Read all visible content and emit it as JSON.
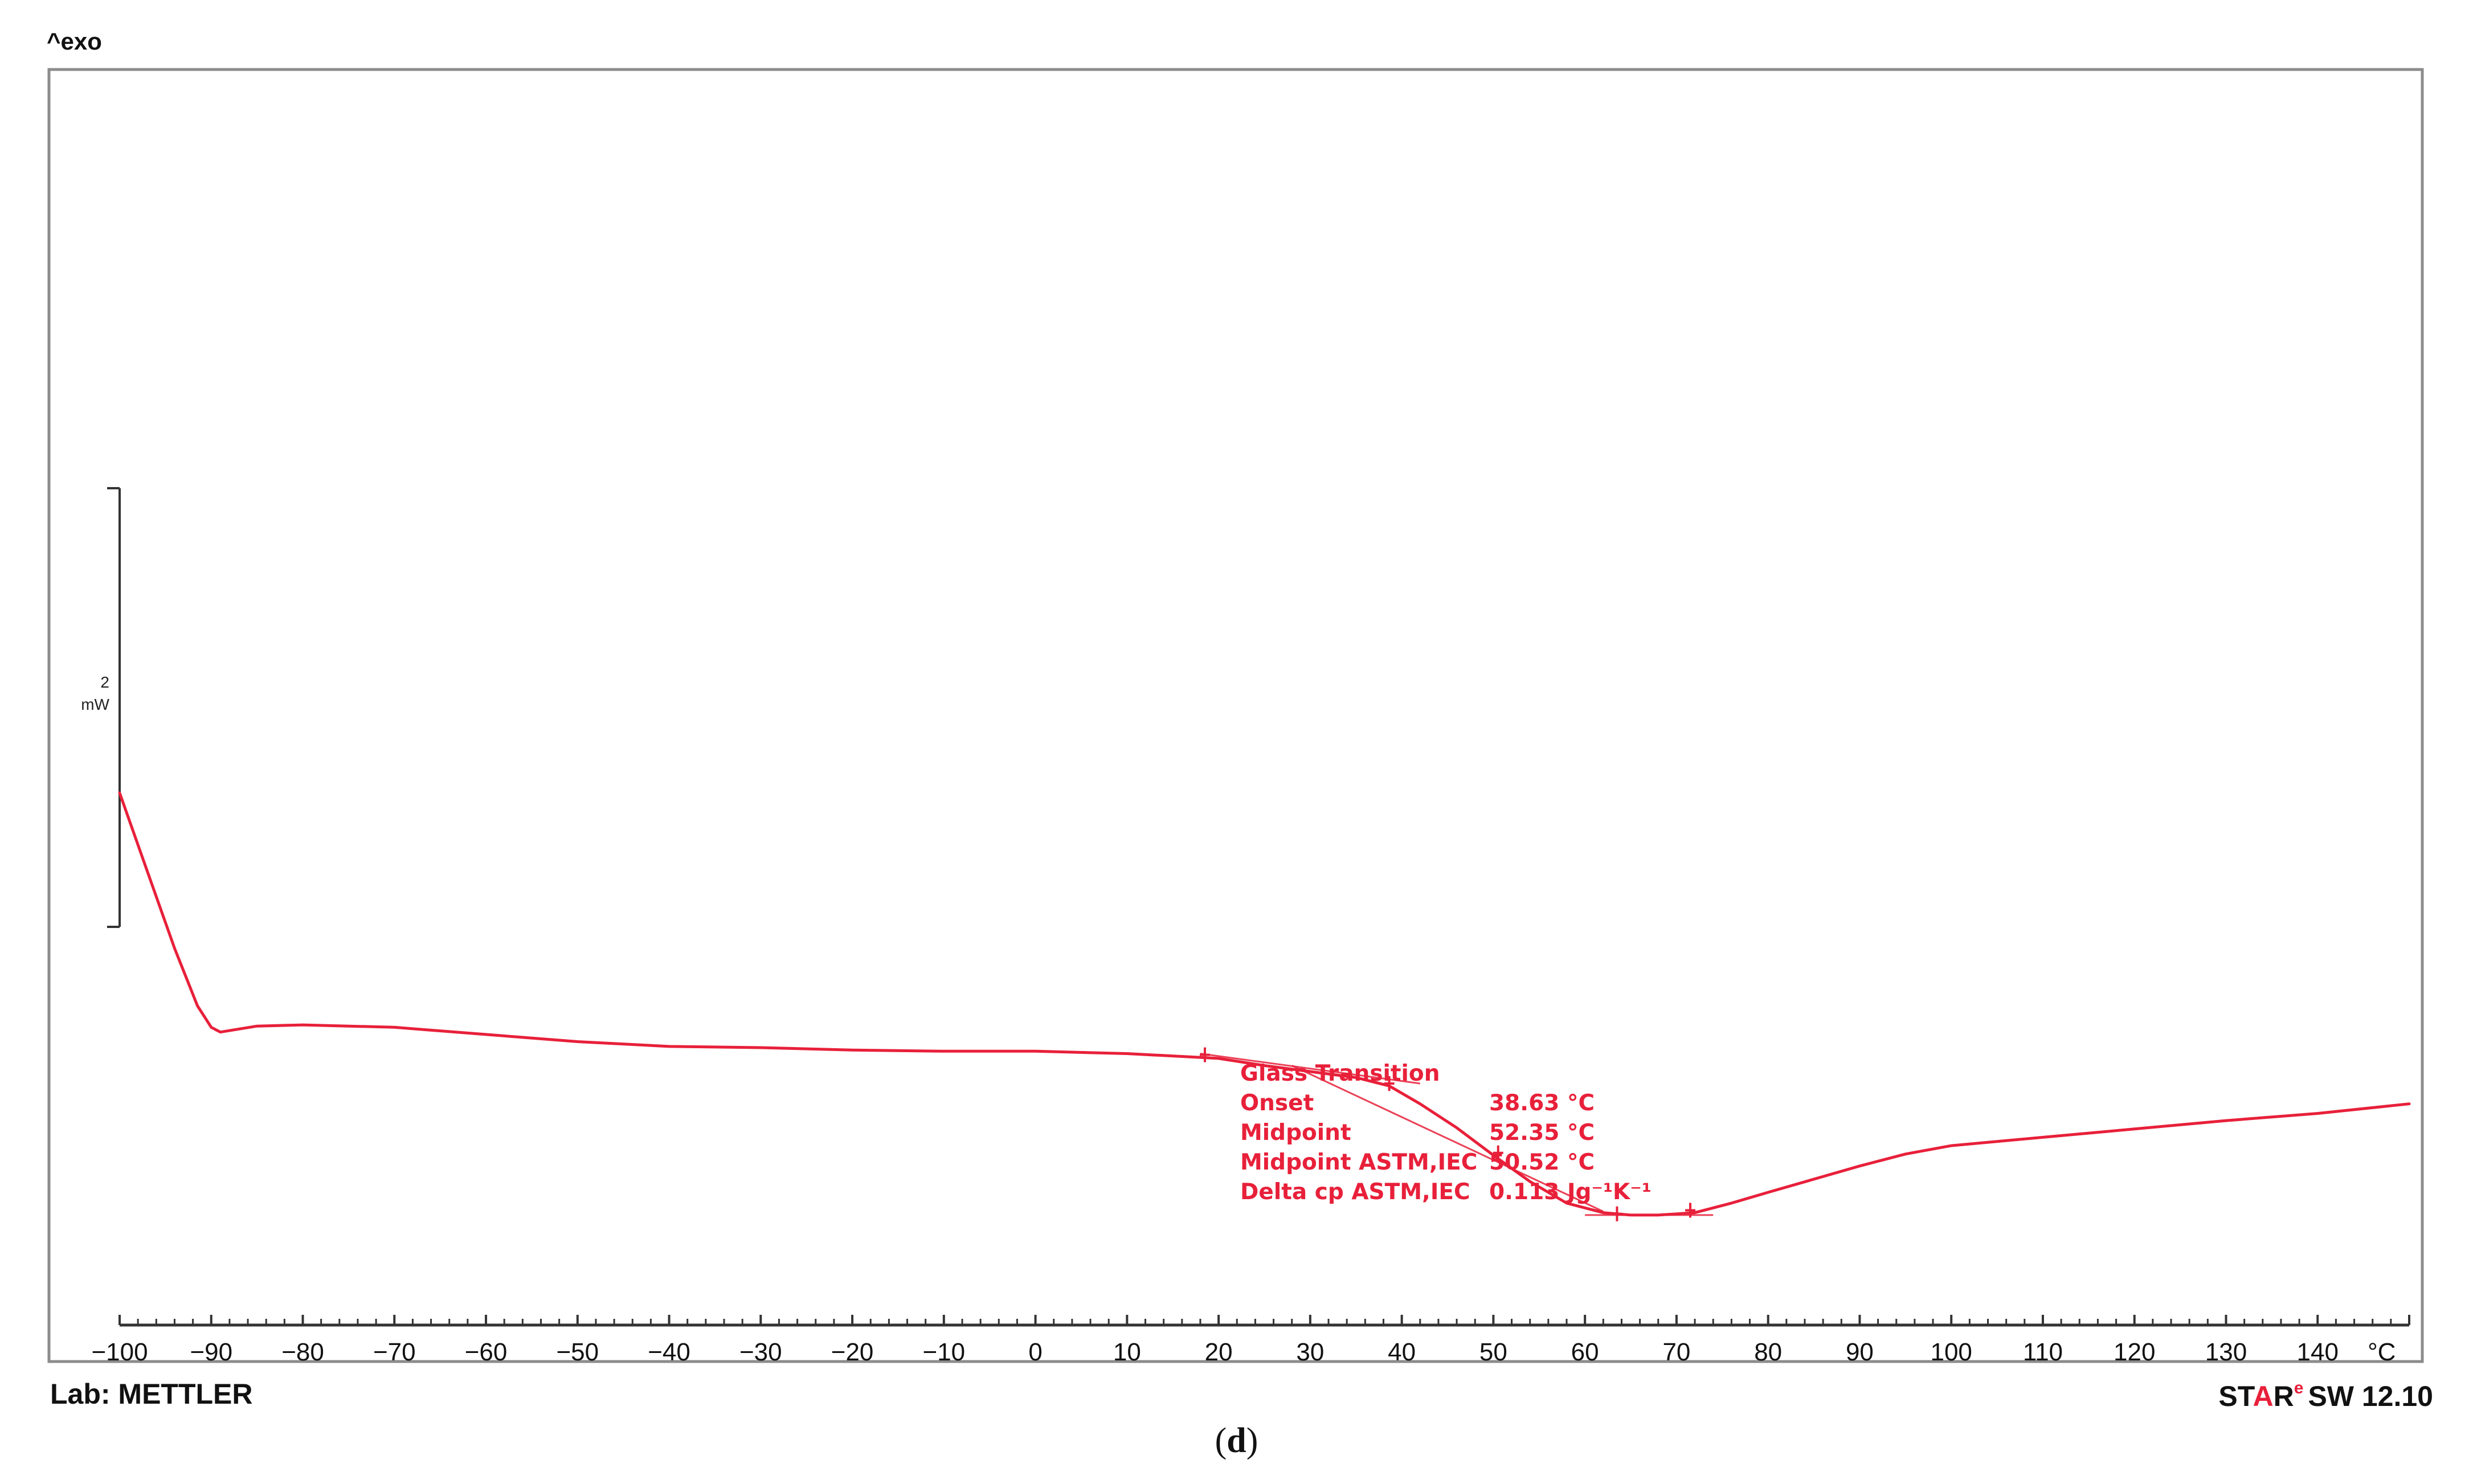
{
  "header": {
    "exo_label": "^exo"
  },
  "footer": {
    "lab": "Lab: METTLER",
    "software_brand": [
      "S",
      "T",
      "A",
      "R"
    ],
    "software_superscript": "e",
    "software_version": "SW 12.10",
    "panel_label_open": "(",
    "panel_label_letter": "d",
    "panel_label_close": ")"
  },
  "scale_bar": {
    "value": "2",
    "unit": "mW",
    "value_mw": 2
  },
  "annotation": {
    "title": "Glass Transition",
    "rows": [
      {
        "key": "Onset",
        "value": "38.63 °C"
      },
      {
        "key": "Midpoint",
        "value": "52.35 °C"
      },
      {
        "key": "Midpoint ASTM,IEC",
        "value": "50.52 °C"
      },
      {
        "key": "Delta cp ASTM,IEC",
        "value": "0.113 Jg⁻¹K⁻¹"
      }
    ]
  },
  "colors": {
    "curve": "#e8203a",
    "axis": "#333333",
    "frame": "#8c8c8c"
  },
  "chart_data": {
    "type": "line",
    "title": "",
    "xlabel": "°C",
    "ylabel": "",
    "xlim": [
      -100,
      150
    ],
    "ylim": [
      -2,
      8.5
    ],
    "grid": false,
    "legend": "none",
    "x_ticks": [
      -100,
      -90,
      -80,
      -70,
      -60,
      -50,
      -40,
      -30,
      -20,
      -10,
      0,
      10,
      20,
      30,
      40,
      50,
      60,
      70,
      80,
      90,
      100,
      110,
      120,
      130,
      140
    ],
    "x_unit_label": "°C",
    "series": [
      {
        "x": [
          -100,
          -97,
          -94,
          -91.5,
          -90,
          -89,
          -85,
          -80,
          -70,
          -60,
          -50,
          -40,
          -30,
          -20,
          -10,
          0,
          10,
          20,
          25,
          30,
          35,
          38.63,
          42,
          46,
          50,
          54,
          58,
          62,
          65,
          68,
          72,
          76,
          80,
          85,
          90,
          95,
          100,
          110,
          120,
          130,
          140,
          150
        ],
        "y": [
          2.45,
          1.8,
          1.15,
          0.67,
          0.49,
          0.45,
          0.5,
          0.51,
          0.49,
          0.43,
          0.37,
          0.33,
          0.32,
          0.3,
          0.29,
          0.29,
          0.27,
          0.23,
          0.17,
          0.12,
          0.07,
          0.0,
          -0.15,
          -0.35,
          -0.58,
          -0.8,
          -0.98,
          -1.06,
          -1.08,
          -1.08,
          -1.06,
          -0.98,
          -0.89,
          -0.78,
          -0.67,
          -0.57,
          -0.5,
          -0.43,
          -0.36,
          -0.29,
          -0.23,
          -0.15
        ]
      }
    ],
    "tangents": [
      {
        "x": [
          18,
          42
        ],
        "y": [
          0.27,
          0.02
        ]
      },
      {
        "x": [
          28,
          62
        ],
        "y": [
          0.17,
          -1.05
        ]
      },
      {
        "x": [
          60,
          74
        ],
        "y": [
          -1.08,
          -1.08
        ]
      }
    ],
    "markers": [
      {
        "x": 18.5,
        "y": 0.26
      },
      {
        "x": 38.63,
        "y": 0.02
      },
      {
        "x": 50.52,
        "y": -0.56
      },
      {
        "x": 63.5,
        "y": -1.07
      },
      {
        "x": 71.5,
        "y": -1.04
      }
    ]
  }
}
